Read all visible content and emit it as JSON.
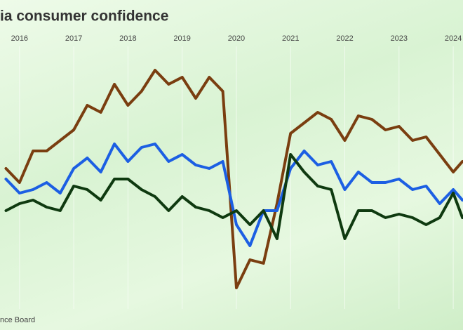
{
  "chart_data": {
    "type": "line",
    "title": "ia consumer confidence",
    "source": "nce Board",
    "x": [
      2015.75,
      2016.0,
      2016.25,
      2016.5,
      2016.75,
      2017.0,
      2017.25,
      2017.5,
      2017.75,
      2018.0,
      2018.25,
      2018.5,
      2018.75,
      2019.0,
      2019.25,
      2019.5,
      2019.75,
      2020.0,
      2020.25,
      2020.5,
      2020.75,
      2021.0,
      2021.25,
      2021.5,
      2021.75,
      2022.0,
      2022.25,
      2022.5,
      2022.75,
      2023.0,
      2023.25,
      2023.5,
      2023.75,
      2024.0,
      2024.17
    ],
    "series": [
      {
        "color": "#7a3e10",
        "values": [
          50,
          45,
          56.25,
          56.25,
          60,
          63.75,
          72.5,
          70,
          80,
          72.5,
          77.5,
          85,
          80,
          82.5,
          75,
          82.5,
          77.5,
          7.5,
          17.5,
          16.25,
          37.5,
          62.5,
          66.25,
          70,
          67.5,
          60,
          68.75,
          67.5,
          63.75,
          65,
          60,
          61.25,
          55,
          48.75,
          52.5
        ]
      },
      {
        "color": "#1c5fe3",
        "values": [
          46.25,
          41.25,
          42.5,
          45,
          41.25,
          50,
          53.75,
          48.75,
          58.75,
          52.5,
          57.5,
          58.75,
          52.5,
          55,
          51.25,
          50,
          52.5,
          30,
          22.5,
          35,
          35,
          50,
          56.25,
          51.25,
          52.5,
          42.5,
          48.75,
          45,
          45,
          46.25,
          42.5,
          43.75,
          37.5,
          42.5,
          38.75
        ]
      },
      {
        "color": "#0f3a10",
        "values": [
          35,
          37.5,
          38.75,
          36.25,
          35,
          43.75,
          42.5,
          38.75,
          46.25,
          46.25,
          42.5,
          40,
          35,
          40,
          36.25,
          35,
          32.5,
          35,
          30,
          35,
          25,
          55,
          48.75,
          43.75,
          42.5,
          25,
          35,
          35,
          32.5,
          33.75,
          32.5,
          30,
          32.5,
          41.25,
          32.5
        ]
      }
    ],
    "xlim": [
      2015.64,
      2024.18
    ],
    "xticks": [
      2016,
      2017,
      2018,
      2019,
      2020,
      2021,
      2022,
      2023,
      2024
    ],
    "ylim": [
      0,
      100
    ],
    "grid": true
  }
}
